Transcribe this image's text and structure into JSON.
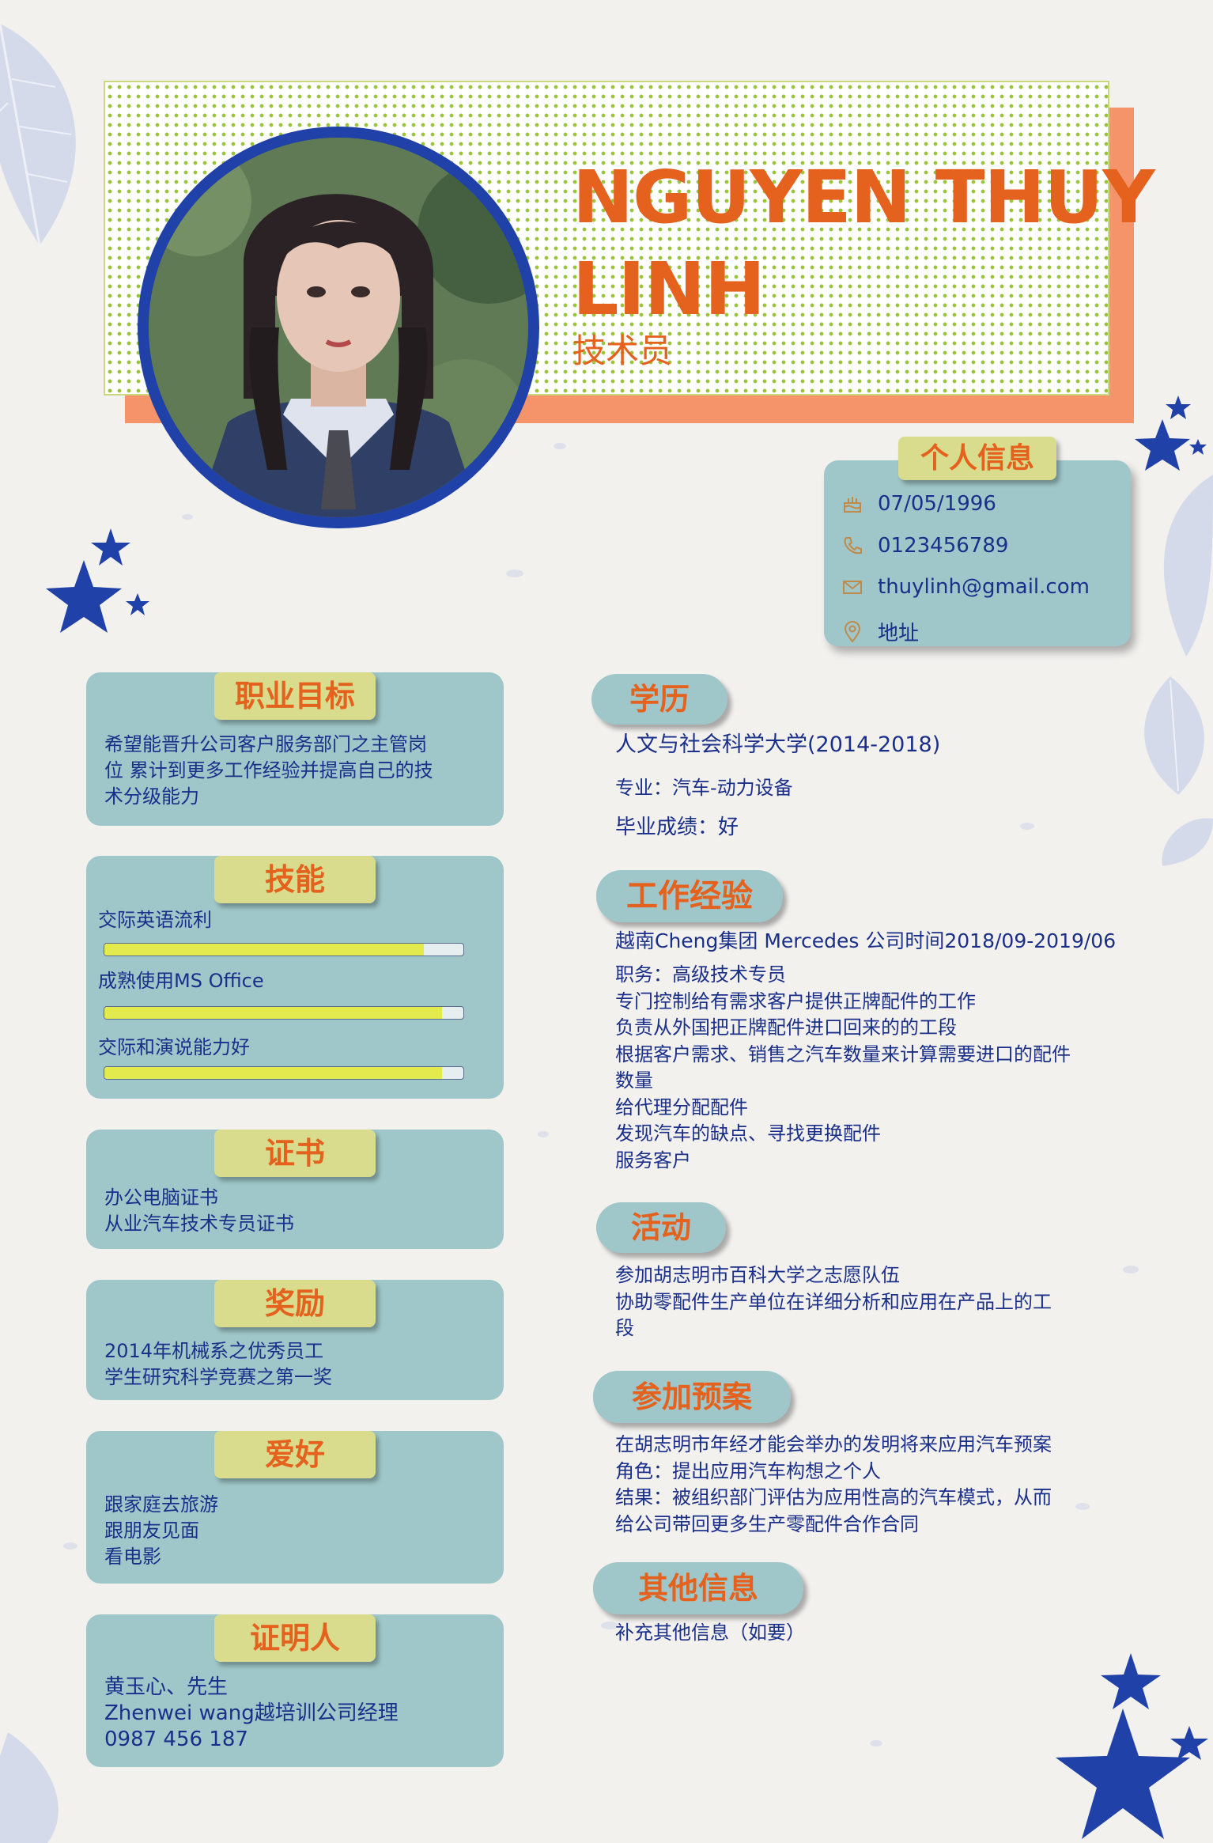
{
  "header": {
    "name_line1": "NGUYEN THUY",
    "name_line2": "LINH",
    "job_title": "技术员"
  },
  "personal_info": {
    "title": "个人信息",
    "birthday": "07/05/1996",
    "phone": "0123456789",
    "email": "thuylinh@gmail.com",
    "address": "地址"
  },
  "left": {
    "objective": {
      "title": "职业目标",
      "lines": [
        "希望能晋升公司客户服务部门之主管岗",
        "位  累计到更多工作经验并提高自己的技",
        "术分级能力"
      ]
    },
    "skills": {
      "title": "技能",
      "items": [
        {
          "label": "交际英语流利",
          "level": 0.89
        },
        {
          "label": "成熟使用MS Office",
          "level": 0.94
        },
        {
          "label": "交际和演说能力好",
          "level": 0.94
        }
      ]
    },
    "certificates": {
      "title": "证书",
      "lines": [
        "办公电脑证书",
        "从业汽车技术专员证书"
      ]
    },
    "awards": {
      "title": "奖励",
      "lines": [
        "2014年机械系之优秀员工",
        "学生研究科学竞赛之第一奖"
      ]
    },
    "hobbies": {
      "title": "爱好",
      "lines": [
        "跟家庭去旅游",
        "跟朋友见面",
        "看电影"
      ]
    },
    "references": {
      "title": "证明人",
      "lines": [
        "黄玉心、先生",
        "Zhenwei wang越培训公司经理",
        "0987 456 187"
      ]
    }
  },
  "right": {
    "education": {
      "title": "学历",
      "school": "人文与社会科学大学(2014-2018)",
      "major": "专业：汽车-动力设备",
      "grade": "毕业成绩：好"
    },
    "experience": {
      "title": "工作经验",
      "company": "越南Cheng集团 Mercedes 公司时间2018/09-2019/06",
      "lines": [
        "职务：高级技术专员",
        "专门控制给有需求客户提供正牌配件的工作",
        "负责从外国把正牌配件进口回来的的工段",
        "根据客户需求、销售之汽车数量来计算需要进口的配件",
        "数量",
        "给代理分配配件",
        "发现汽车的缺点、寻找更换配件",
        "服务客户"
      ]
    },
    "activities": {
      "title": "活动",
      "lines": [
        "参加胡志明市百科大学之志愿队伍",
        "协助零配件生产单位在详细分析和应用在产品上的工",
        "段"
      ]
    },
    "projects": {
      "title": "参加预案",
      "lines": [
        "在胡志明市年经才能会举办的发明将来应用汽车预案",
        "角色：提出应用汽车构想之个人",
        "结果：被组织部门评估为应用性高的汽车模式，从而",
        "给公司带回更多生产零配件合作合同"
      ]
    },
    "other": {
      "title": "其他信息",
      "lines": [
        "补充其他信息（如要）"
      ]
    }
  },
  "colors": {
    "accent_orange": "#e4611e",
    "card_teal": "#9fc7c9",
    "tag_yellow": "#d8dc8c",
    "text_blue": "#1a2f8a",
    "star_blue": "#1f41a8"
  }
}
